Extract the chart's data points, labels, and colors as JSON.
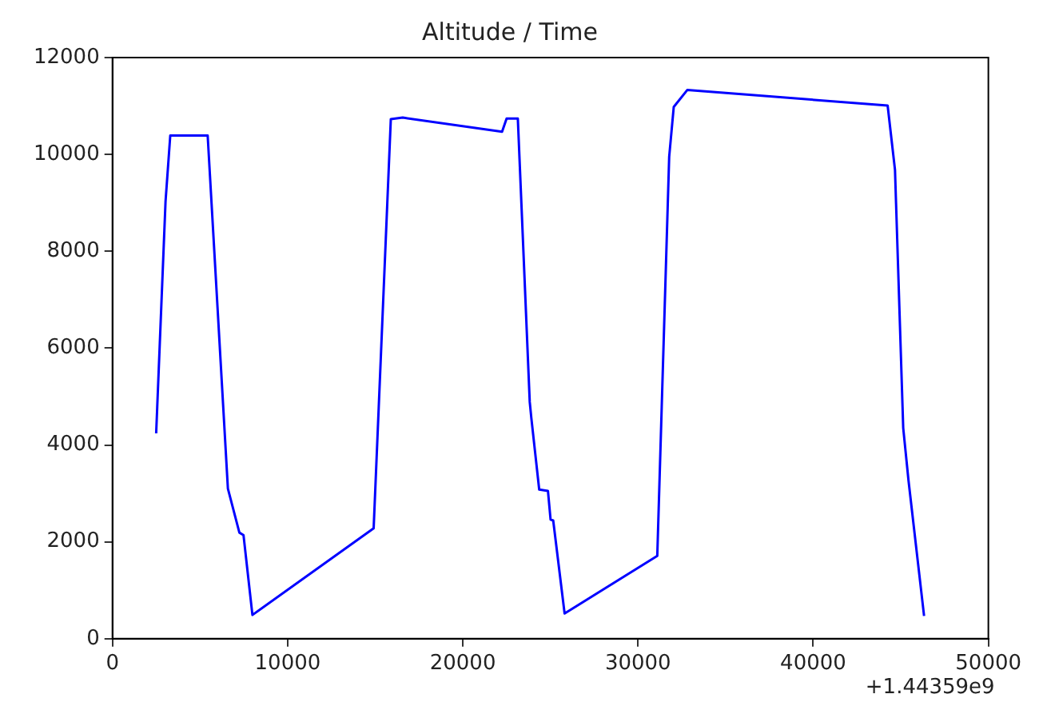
{
  "chart_data": {
    "type": "line",
    "title": "Altitude / Time",
    "annotations": [
      "+1.44359e9"
    ],
    "x": [
      2495,
      3030,
      3300,
      5435,
      6590,
      7245,
      7480,
      7990,
      14910,
      15890,
      16570,
      22240,
      22500,
      23140,
      23820,
      23910,
      24360,
      24860,
      25010,
      25160,
      25810,
      31100,
      31780,
      32040,
      32810,
      44250,
      44670,
      45140,
      45440,
      46330
    ],
    "series": [
      {
        "color": "#0000ff",
        "values": [
          4240,
          9030,
          10390,
          10390,
          3100,
          2190,
          2140,
          490,
          2280,
          10730,
          10760,
          10470,
          10740,
          10740,
          4890,
          4560,
          3080,
          3050,
          2460,
          2440,
          520,
          1710,
          9950,
          10980,
          11330,
          11010,
          9680,
          4350,
          3270,
          470
        ]
      }
    ],
    "xlim": [
      0,
      50000
    ],
    "xticks": [
      0,
      10000,
      20000,
      30000,
      40000,
      50000
    ],
    "ylim": [
      0,
      12000
    ],
    "yticks": [
      0,
      2000,
      4000,
      6000,
      8000,
      10000,
      12000
    ],
    "legend": false,
    "marker": "none",
    "line_style": "solid"
  }
}
